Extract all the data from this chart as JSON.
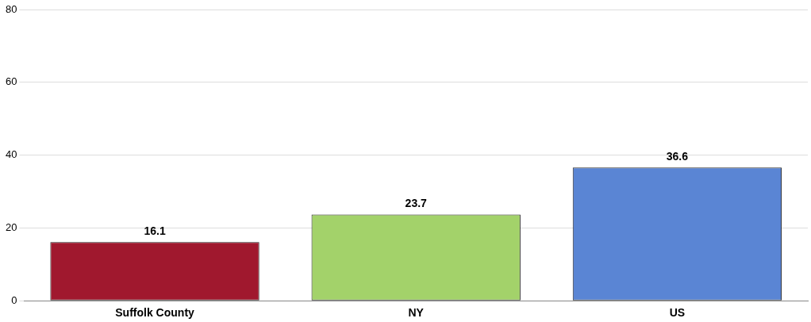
{
  "chart_data": {
    "type": "bar",
    "categories": [
      "Suffolk County",
      "NY",
      "US"
    ],
    "values": [
      16.1,
      23.7,
      36.6
    ],
    "colors": [
      "#a0182e",
      "#a3d26a",
      "#5a85d4"
    ],
    "ylim": [
      0,
      80
    ],
    "yticks": [
      0,
      20,
      40,
      60,
      80
    ],
    "grid": "y",
    "data_labels": true
  }
}
